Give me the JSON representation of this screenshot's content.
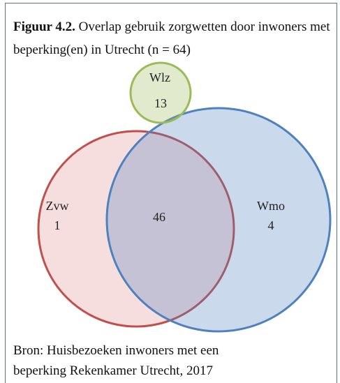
{
  "figure": {
    "label": "Figuur 4.2.",
    "title": "Overlap gebruik zorgwetten door inwoners met beperking(en) in Utrecht (n = 64)"
  },
  "sets": [
    {
      "name": "Wlz",
      "count": 13
    },
    {
      "name": "Zvw",
      "count": 1
    },
    {
      "name": "Wmo",
      "count": 4
    }
  ],
  "overlap": {
    "count": 46
  },
  "source": "Bron: Huisbezoeken inwoners met een beperking Rekenkamer Utrecht, 2017"
}
